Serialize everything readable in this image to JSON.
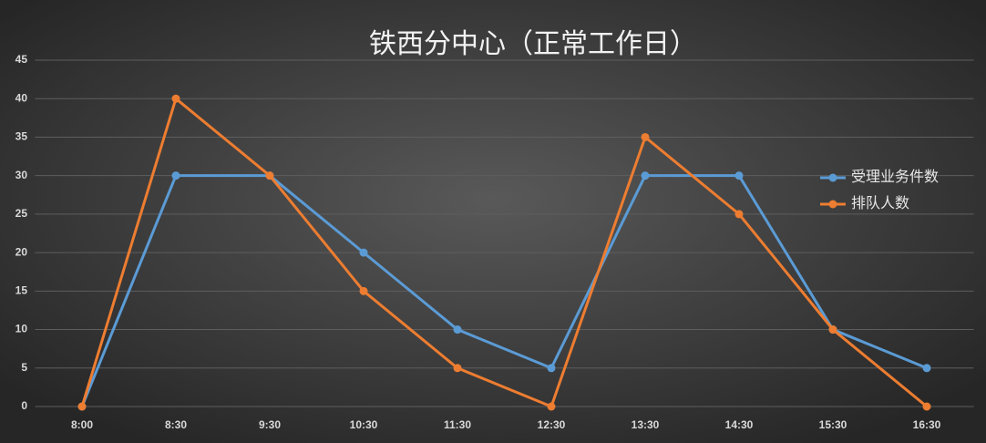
{
  "chart_data": {
    "type": "line",
    "title": "铁西分中心（正常工作日）",
    "categories": [
      "8:00",
      "8:30",
      "9:30",
      "10:30",
      "11:30",
      "12:30",
      "13:30",
      "14:30",
      "15:30",
      "16:30"
    ],
    "series": [
      {
        "name": "受理业务件数",
        "color": "#5b9bd5",
        "values": [
          0,
          30,
          30,
          20,
          10,
          5,
          30,
          30,
          10,
          5
        ]
      },
      {
        "name": "排队人数",
        "color": "#ed7d31",
        "values": [
          0,
          40,
          30,
          15,
          5,
          0,
          35,
          25,
          10,
          0
        ]
      }
    ],
    "ylim": [
      0,
      45
    ],
    "yticks": [
      0,
      5,
      10,
      15,
      20,
      25,
      30,
      35,
      40,
      45
    ],
    "grid": true,
    "legend": "right"
  }
}
